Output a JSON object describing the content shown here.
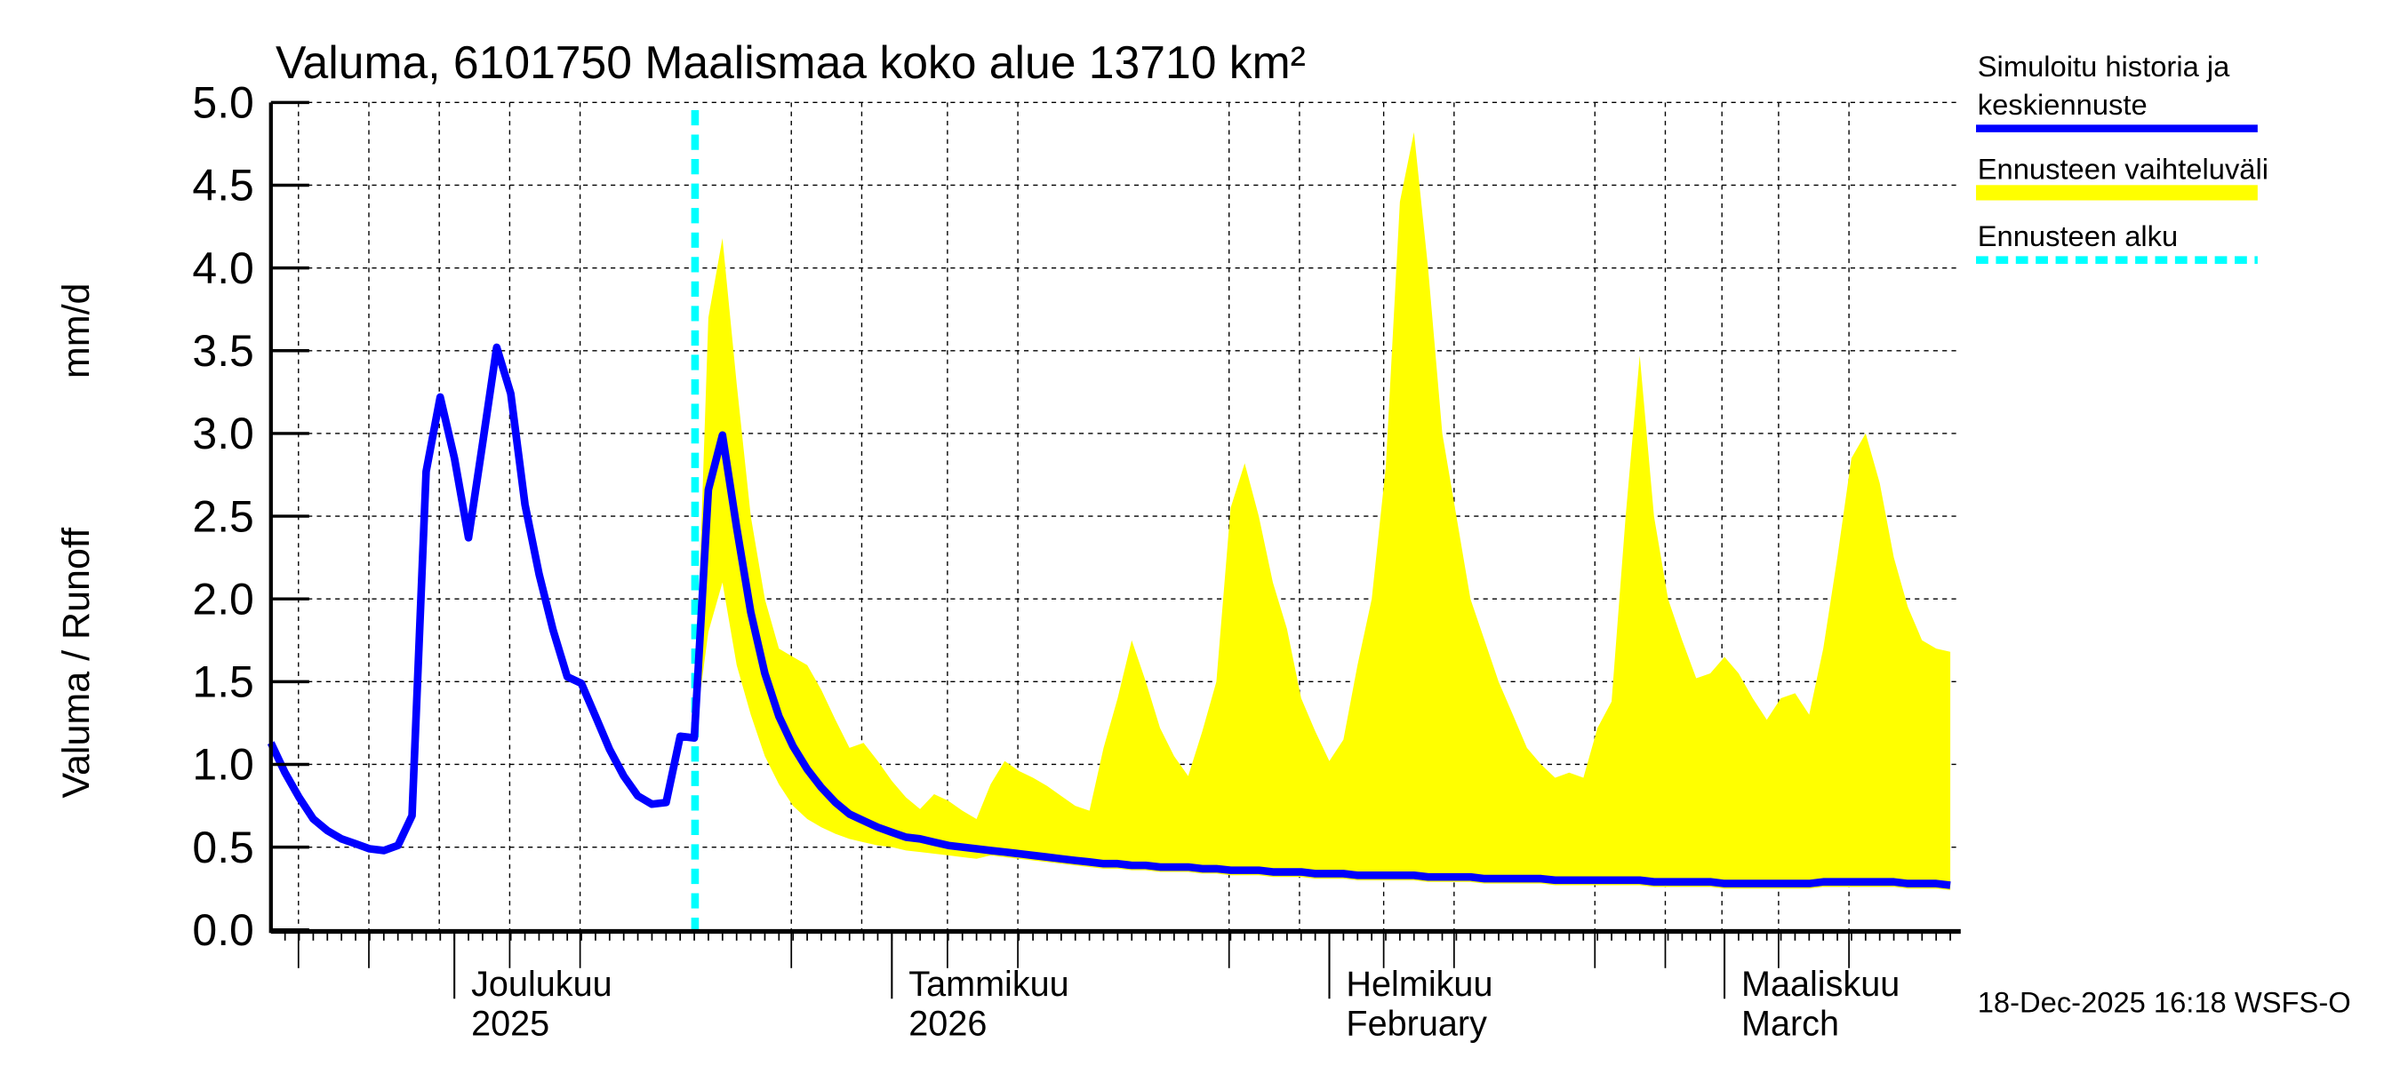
{
  "chart_data": {
    "type": "area",
    "title": "Valuma, 6101750 Maalismaa koko alue 13710 km²",
    "ylabel_left": "Valuma / Runoff",
    "ylabel_unit": "mm/d",
    "ylim": [
      0,
      5.0
    ],
    "y_ticks": [
      "0.0",
      "0.5",
      "1.0",
      "1.5",
      "2.0",
      "2.5",
      "3.0",
      "3.5",
      "4.0",
      "4.5",
      "5.0"
    ],
    "x_start_date": "2025-11-18",
    "x_days": 120,
    "forecast_start_day": 30,
    "x_labels": [
      {
        "day": 13,
        "line1": "Joulukuu",
        "line2": "2025"
      },
      {
        "day": 44,
        "line1": "Tammikuu",
        "line2": "2026"
      },
      {
        "day": 75,
        "line1": "Helmikuu",
        "line2": "February"
      },
      {
        "day": 103,
        "line1": "Maaliskuu",
        "line2": "March"
      }
    ],
    "series": [
      {
        "name": "Simuloitu historia ja keskiennuste",
        "color": "#0000ff",
        "start_day": 0,
        "values": [
          1.13,
          0.95,
          0.8,
          0.67,
          0.6,
          0.55,
          0.52,
          0.49,
          0.48,
          0.51,
          0.69,
          2.77,
          3.22,
          2.85,
          2.37,
          2.94,
          3.52,
          3.24,
          2.57,
          2.15,
          1.81,
          1.53,
          1.49,
          1.29,
          1.09,
          0.93,
          0.81,
          0.76,
          0.77,
          1.17,
          1.16,
          2.66,
          2.99,
          2.43,
          1.92,
          1.55,
          1.29,
          1.11,
          0.97,
          0.86,
          0.77,
          0.7,
          0.66,
          0.62,
          0.59,
          0.56,
          0.55,
          0.53,
          0.51,
          0.5,
          0.49,
          0.48,
          0.47,
          0.46,
          0.45,
          0.44,
          0.43,
          0.42,
          0.41,
          0.4,
          0.4,
          0.39,
          0.39,
          0.38,
          0.38,
          0.38,
          0.37,
          0.37,
          0.36,
          0.36,
          0.36,
          0.35,
          0.35,
          0.35,
          0.34,
          0.34,
          0.34,
          0.33,
          0.33,
          0.33,
          0.33,
          0.33,
          0.32,
          0.32,
          0.32,
          0.32,
          0.31,
          0.31,
          0.31,
          0.31,
          0.31,
          0.3,
          0.3,
          0.3,
          0.3,
          0.3,
          0.3,
          0.3,
          0.29,
          0.29,
          0.29,
          0.29,
          0.29,
          0.28,
          0.28,
          0.28,
          0.28,
          0.28,
          0.28,
          0.28,
          0.29,
          0.29,
          0.29,
          0.29,
          0.29,
          0.29,
          0.28,
          0.28,
          0.28,
          0.27
        ]
      },
      {
        "name": "Ennusteen vaihteluväli",
        "color": "#ffff00",
        "start_day": 30,
        "upper": [
          1.16,
          3.7,
          4.18,
          3.3,
          2.5,
          2.0,
          1.7,
          1.65,
          1.6,
          1.45,
          1.27,
          1.1,
          1.13,
          1.02,
          0.9,
          0.8,
          0.73,
          0.82,
          0.78,
          0.72,
          0.67,
          0.88,
          1.02,
          0.96,
          0.92,
          0.87,
          0.81,
          0.75,
          0.72,
          1.1,
          1.4,
          1.75,
          1.5,
          1.22,
          1.05,
          0.93,
          1.2,
          1.5,
          2.55,
          2.82,
          2.5,
          2.1,
          1.82,
          1.4,
          1.2,
          1.02,
          1.15,
          1.6,
          2.0,
          2.8,
          4.4,
          4.82,
          4.0,
          3.0,
          2.5,
          2.0,
          1.75,
          1.5,
          1.3,
          1.1,
          1.0,
          0.92,
          0.95,
          0.92,
          1.22,
          1.38,
          2.5,
          3.47,
          2.5,
          2.0,
          1.75,
          1.52,
          1.55,
          1.65,
          1.55,
          1.4,
          1.27,
          1.4,
          1.43,
          1.3,
          1.7,
          2.25,
          2.85,
          3.0,
          2.7,
          2.25,
          1.95,
          1.75,
          1.7,
          1.68
        ],
        "lower": [
          1.16,
          1.8,
          2.1,
          1.6,
          1.3,
          1.05,
          0.88,
          0.75,
          0.67,
          0.62,
          0.58,
          0.55,
          0.53,
          0.51,
          0.5,
          0.48,
          0.47,
          0.46,
          0.45,
          0.44,
          0.43,
          0.45,
          0.44,
          0.43,
          0.42,
          0.41,
          0.4,
          0.39,
          0.38,
          0.37,
          0.37,
          0.36,
          0.36,
          0.35,
          0.35,
          0.35,
          0.34,
          0.34,
          0.33,
          0.33,
          0.33,
          0.32,
          0.32,
          0.32,
          0.31,
          0.31,
          0.31,
          0.3,
          0.3,
          0.3,
          0.3,
          0.3,
          0.29,
          0.29,
          0.29,
          0.29,
          0.28,
          0.28,
          0.28,
          0.28,
          0.28,
          0.27,
          0.27,
          0.27,
          0.27,
          0.27,
          0.27,
          0.27,
          0.26,
          0.26,
          0.26,
          0.26,
          0.26,
          0.25,
          0.25,
          0.25,
          0.25,
          0.25,
          0.25,
          0.25,
          0.26,
          0.26,
          0.26,
          0.26,
          0.26,
          0.26,
          0.25,
          0.25,
          0.25,
          0.24
        ]
      },
      {
        "name": "Ennusteen alku",
        "color": "#00ffff"
      }
    ],
    "grid": true,
    "legend_position": "right"
  },
  "timestamp": "18-Dec-2025 16:18 WSFS-O"
}
